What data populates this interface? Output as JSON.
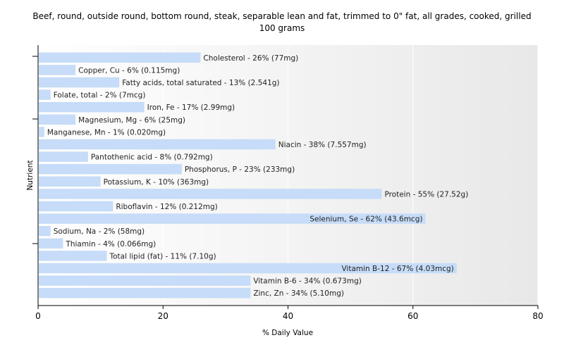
{
  "chart_data": {
    "type": "bar",
    "orientation": "horizontal",
    "title": "Beef, round, outside round, bottom round, steak, separable lean and fat, trimmed to 0\" fat, all grades, cooked, grilled",
    "subtitle": "100 grams",
    "xlabel": "% Daily Value",
    "ylabel": "Nutrient",
    "xlim": [
      0,
      80
    ],
    "xticks": [
      0,
      20,
      40,
      60,
      80
    ],
    "grid": true,
    "colors": {
      "bar": "#c6dcf8",
      "plot_bg_start": "#ffffff",
      "plot_bg_end": "#e8e8e8",
      "grid": "#ffffff"
    },
    "categories": [
      "Cholesterol",
      "Copper, Cu",
      "Fatty acids, total saturated",
      "Folate, total",
      "Iron, Fe",
      "Magnesium, Mg",
      "Manganese, Mn",
      "Niacin",
      "Pantothenic acid",
      "Phosphorus, P",
      "Potassium, K",
      "Protein",
      "Riboflavin",
      "Selenium, Se",
      "Sodium, Na",
      "Thiamin",
      "Total lipid (fat)",
      "Vitamin B-12",
      "Vitamin B-6",
      "Zinc, Zn"
    ],
    "values": [
      26,
      6,
      13,
      2,
      17,
      6,
      1,
      38,
      8,
      23,
      10,
      55,
      12,
      62,
      2,
      4,
      11,
      67,
      34,
      34
    ],
    "labels": [
      "Cholesterol - 26% (77mg)",
      "Copper, Cu - 6% (0.115mg)",
      "Fatty acids, total saturated - 13% (2.541g)",
      "Folate, total - 2% (7mcg)",
      "Iron, Fe - 17% (2.99mg)",
      "Magnesium, Mg - 6% (25mg)",
      "Manganese, Mn - 1% (0.020mg)",
      "Niacin - 38% (7.557mg)",
      "Pantothenic acid - 8% (0.792mg)",
      "Phosphorus, P - 23% (233mg)",
      "Potassium, K - 10% (363mg)",
      "Protein - 55% (27.52g)",
      "Riboflavin - 12% (0.212mg)",
      "Selenium, Se - 62% (43.6mcg)",
      "Sodium, Na - 2% (58mg)",
      "Thiamin - 4% (0.066mg)",
      "Total lipid (fat) - 11% (7.10g)",
      "Vitamin B-12 - 67% (4.03mcg)",
      "Vitamin B-6 - 34% (0.673mg)",
      "Zinc, Zn - 34% (5.10mg)"
    ]
  }
}
